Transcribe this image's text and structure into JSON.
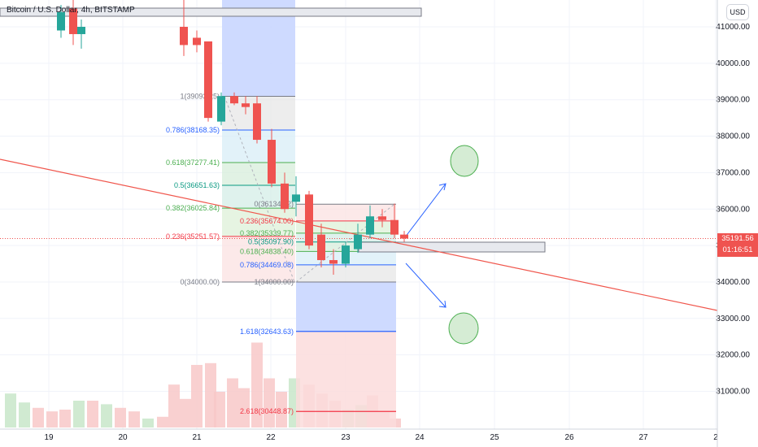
{
  "legend": {
    "text": "Bitcoin / U.S. Dollar, 4h, BITSTAMP"
  },
  "currency": "USD",
  "price_tag": {
    "price": "35191.56",
    "countdown": "01:16:51",
    "color": "#ef5350"
  },
  "colors": {
    "up": "#26a69a",
    "down": "#ef5350",
    "vol_up": "#c8e6c9",
    "vol_down": "#f8c8c8",
    "grid": "#f0f3fa",
    "trend": "#f0564c"
  },
  "y_axis": {
    "labels": [
      "41000.00",
      "40000.00",
      "39000.00",
      "38000.00",
      "37000.00",
      "36000.00",
      "35000.00",
      "34000.00",
      "33000.00",
      "32000.00",
      "31000.00"
    ]
  },
  "x_axis": {
    "labels": [
      "19",
      "20",
      "21",
      "22",
      "23",
      "24",
      "25",
      "26",
      "27",
      "2"
    ]
  },
  "fib_upper": [
    {
      "label": "1(39093.25)",
      "color": "#787b86"
    },
    {
      "label": "0.786(38168.35)",
      "color": "#2962ff"
    },
    {
      "label": "0.618(37277.41)",
      "color": "#4caf50"
    },
    {
      "label": "0.5(36651.63)",
      "color": "#089981"
    },
    {
      "label": "0.382(36025.84)",
      "color": "#4caf50"
    },
    {
      "label": "0.236(35251.57)",
      "color": "#f23645"
    },
    {
      "label": "0(34000.00)",
      "color": "#787b86"
    }
  ],
  "fib_lower": [
    {
      "label": "0(36134.92)",
      "color": "#787b86"
    },
    {
      "label": "0.236(35674.00)",
      "color": "#f23645"
    },
    {
      "label": "0.382(35339.77)",
      "color": "#4caf50"
    },
    {
      "label": "0.5(35097.90)",
      "color": "#089981"
    },
    {
      "label": "0.618(34838.40)",
      "color": "#4caf50"
    },
    {
      "label": "0.786(34469.08)",
      "color": "#2962ff"
    },
    {
      "label": "1(34000.00)",
      "color": "#787b86"
    }
  ],
  "fib_ext": [
    {
      "label": "1.618(32643.63)",
      "color": "#2962ff"
    },
    {
      "label": "2.618(30448.87)",
      "color": "#f23645"
    }
  ],
  "chart_data": {
    "type": "candlestick",
    "symbol": "BTCUSD",
    "interval": "4h",
    "x": [
      "20",
      "20",
      "20",
      "21",
      "21",
      "21",
      "21",
      "21",
      "21",
      "22",
      "22",
      "22",
      "22",
      "22",
      "22",
      "23",
      "23",
      "23",
      "23",
      "23",
      "23",
      "23"
    ],
    "candles": [
      {
        "o": 40900,
        "h": 41600,
        "l": 40700,
        "c": 41400
      },
      {
        "o": 41500,
        "h": 41800,
        "l": 40500,
        "c": 40800
      },
      {
        "o": 40800,
        "h": 41200,
        "l": 40400,
        "c": 41000
      },
      {
        "o": 41000,
        "h": 42000,
        "l": 40200,
        "c": 40500
      },
      {
        "o": 40700,
        "h": 40900,
        "l": 40300,
        "c": 40500
      },
      {
        "o": 40600,
        "h": 40600,
        "l": 38400,
        "c": 38500
      },
      {
        "o": 38400,
        "h": 39200,
        "l": 38300,
        "c": 39100
      },
      {
        "o": 39100,
        "h": 39200,
        "l": 38850,
        "c": 38900
      },
      {
        "o": 38900,
        "h": 39100,
        "l": 38600,
        "c": 38800
      },
      {
        "o": 38900,
        "h": 39100,
        "l": 37800,
        "c": 37900
      },
      {
        "o": 37900,
        "h": 38200,
        "l": 36600,
        "c": 36700
      },
      {
        "o": 36700,
        "h": 37000,
        "l": 35900,
        "c": 36000
      },
      {
        "o": 36200,
        "h": 36900,
        "l": 35800,
        "c": 36400
      },
      {
        "o": 36400,
        "h": 36500,
        "l": 34900,
        "c": 35000
      },
      {
        "o": 35300,
        "h": 35600,
        "l": 34400,
        "c": 34600
      },
      {
        "o": 34600,
        "h": 34900,
        "l": 34200,
        "c": 34500
      },
      {
        "o": 34500,
        "h": 35100,
        "l": 34400,
        "c": 35000
      },
      {
        "o": 34900,
        "h": 35600,
        "l": 34800,
        "c": 35300
      },
      {
        "o": 35300,
        "h": 36100,
        "l": 35200,
        "c": 35800
      },
      {
        "o": 35800,
        "h": 36000,
        "l": 35500,
        "c": 35700
      },
      {
        "o": 35700,
        "h": 36150,
        "l": 35200,
        "c": 35300
      },
      {
        "o": 35300,
        "h": 35400,
        "l": 35100,
        "c": 35191.56
      }
    ],
    "volume_relative": [
      0.55,
      0.6,
      0.4,
      0.45,
      1.0,
      0.95,
      0.75,
      0.5,
      0.55,
      0.45,
      0.6,
      0.5,
      0.35,
      0.55,
      0.55,
      0.4,
      0.4,
      0.5,
      0.5,
      0.65,
      0.45,
      0.5
    ],
    "current_price": 35191.56,
    "ylim": [
      30000,
      41500
    ]
  }
}
